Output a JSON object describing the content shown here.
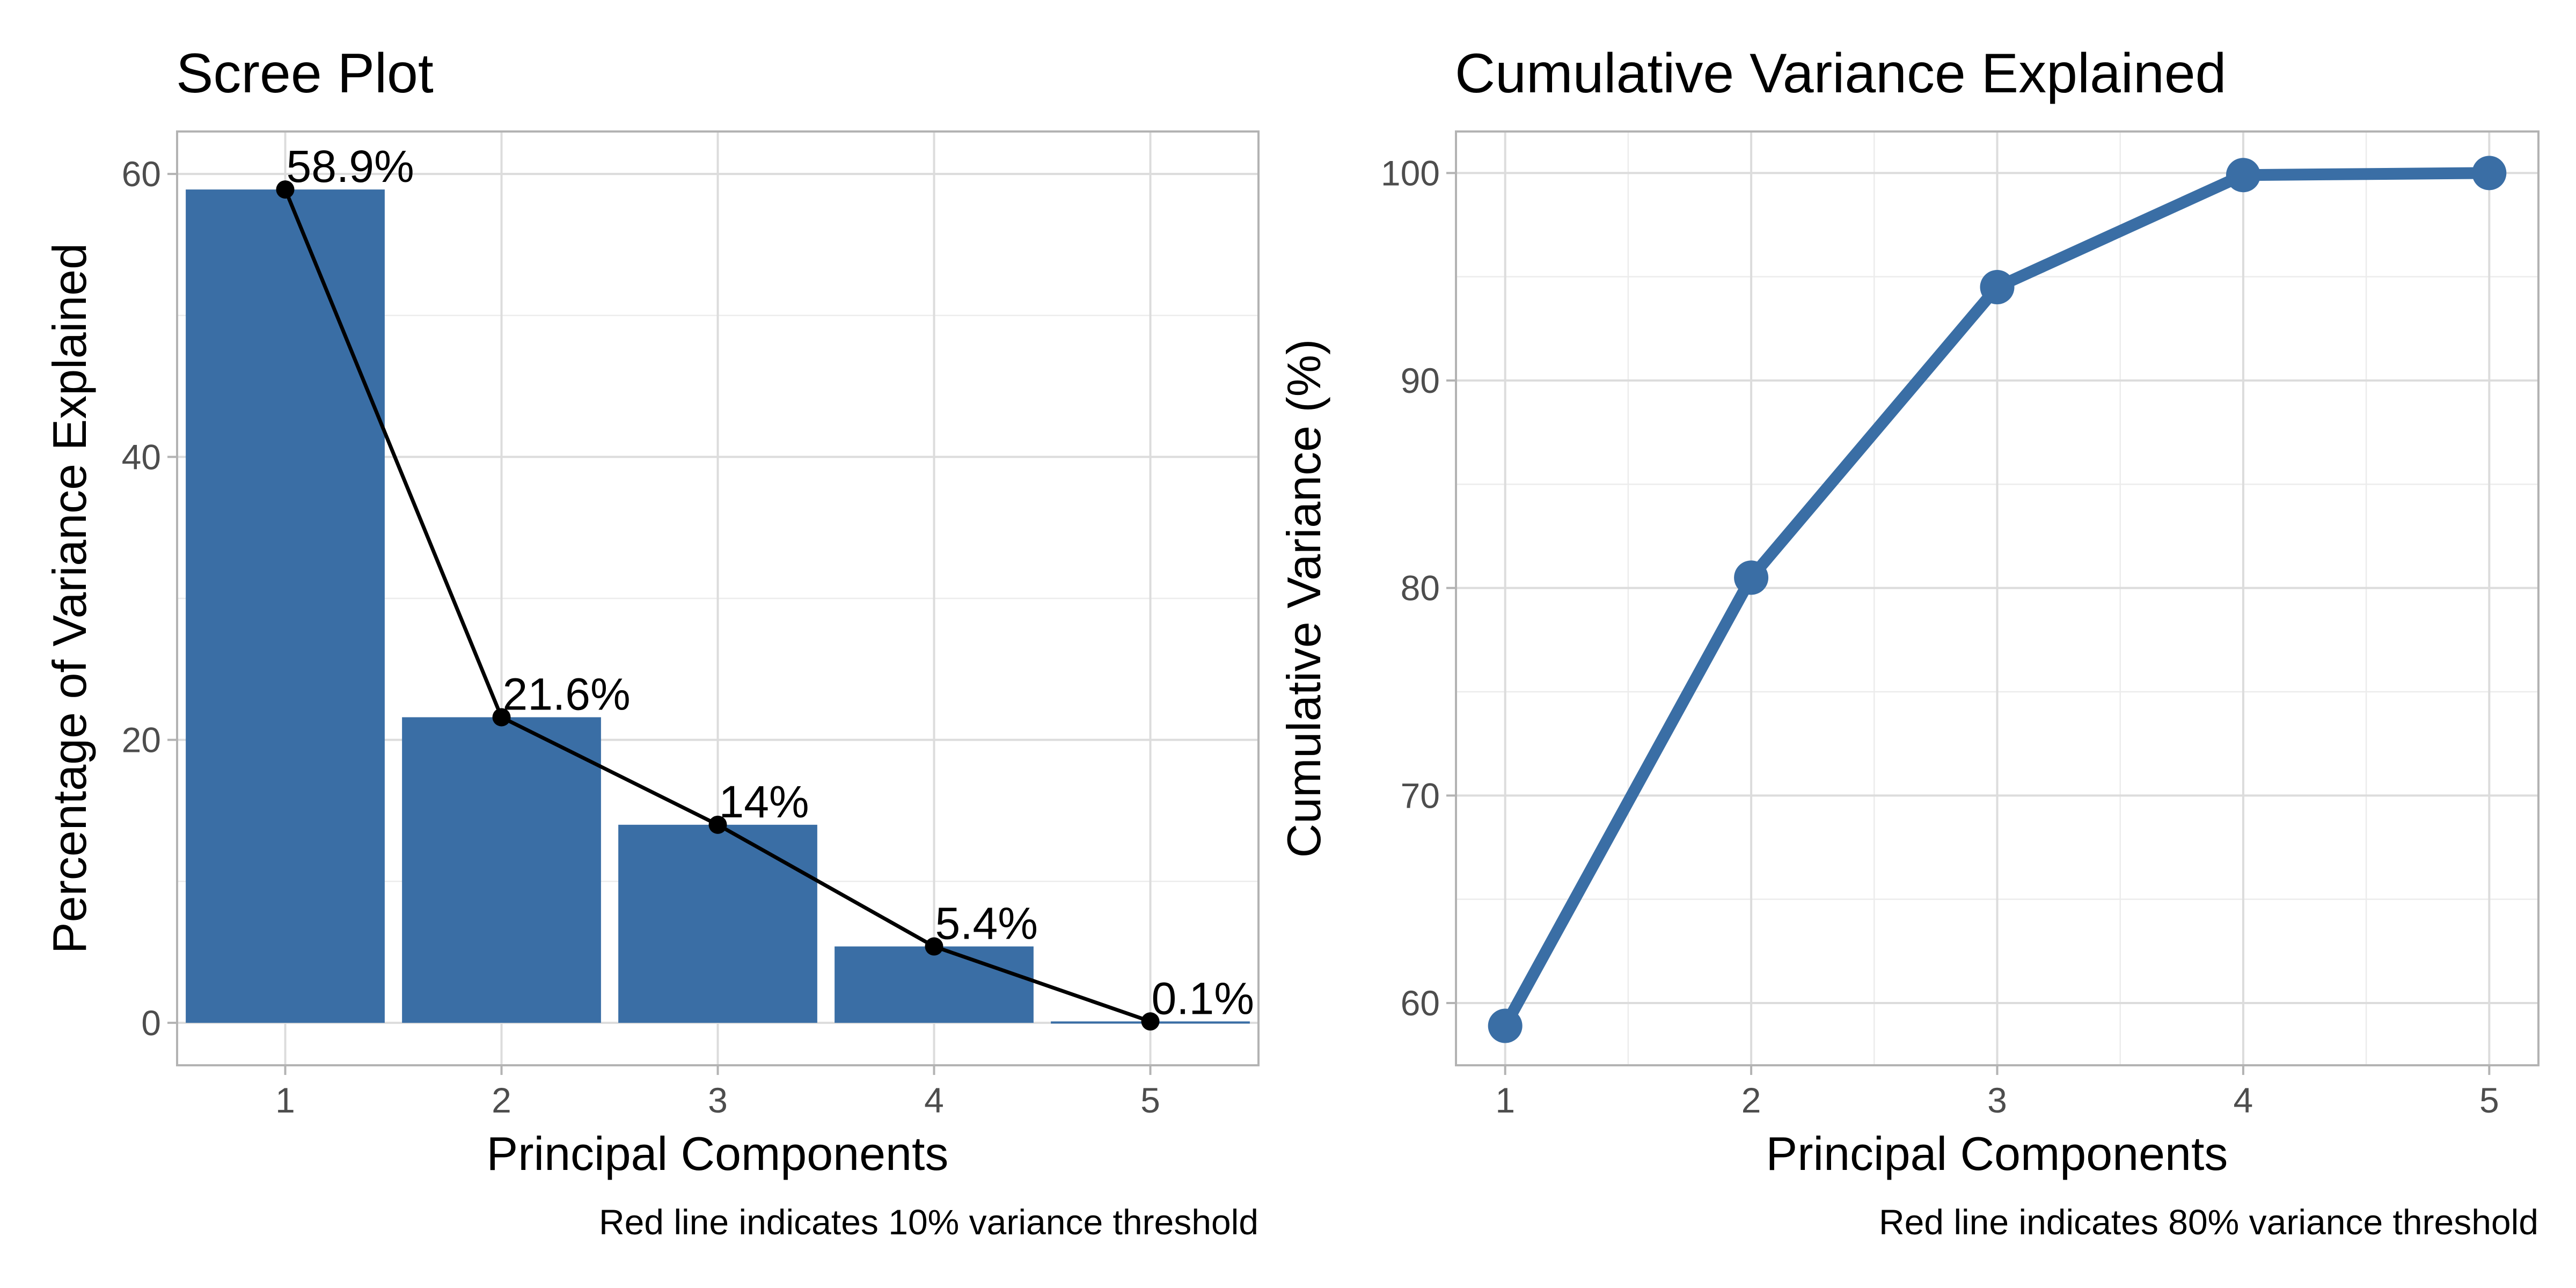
{
  "chart_data": [
    {
      "type": "bar",
      "title": "Scree Plot",
      "xlabel": "Principal Components",
      "ylabel": "Percentage of Variance Explained",
      "caption": "Red line indicates 10% variance threshold",
      "categories": [
        "1",
        "2",
        "3",
        "4",
        "5"
      ],
      "values": [
        58.9,
        21.6,
        14.0,
        5.4,
        0.1
      ],
      "data_labels": [
        "58.9%",
        "21.6%",
        "14%",
        "5.4%",
        "0.1%"
      ],
      "overlay": "line-with-points",
      "xlim": [
        0.5,
        5.5
      ],
      "ylim": [
        -3,
        63
      ],
      "yticks": [
        0,
        20,
        40,
        60
      ],
      "grid": true,
      "colors": {
        "bar": "#3a6ea5",
        "line": "#000000"
      }
    },
    {
      "type": "line",
      "title": "Cumulative Variance Explained",
      "xlabel": "Principal Components",
      "ylabel": "Cumulative Variance (%)",
      "caption": "Red line indicates 80% variance threshold",
      "x": [
        1,
        2,
        3,
        4,
        5
      ],
      "values": [
        58.9,
        80.5,
        94.5,
        99.9,
        100.0
      ],
      "xlim": [
        0.8,
        5.2
      ],
      "ylim": [
        57,
        102
      ],
      "yticks": [
        60,
        70,
        80,
        90,
        100
      ],
      "grid": true,
      "colors": {
        "line": "#3a6ea5"
      }
    }
  ]
}
